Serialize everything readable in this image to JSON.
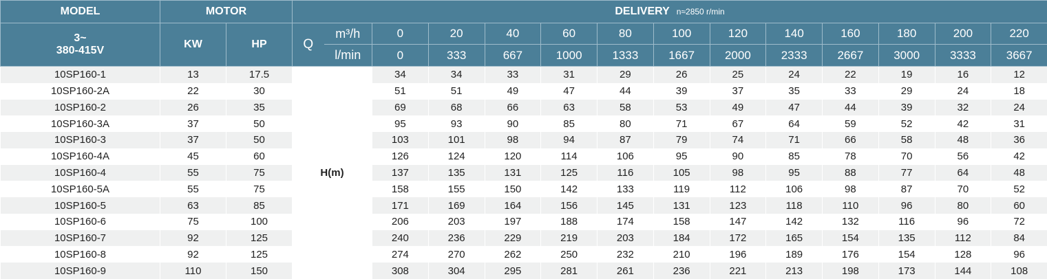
{
  "header": {
    "model": "MODEL",
    "motor": "MOTOR",
    "delivery": "DELIVERY",
    "speed": "n≈2850 r/min",
    "voltage_line1": "3~",
    "voltage_line2": "380-415V",
    "kw": "KW",
    "hp": "HP",
    "q": "Q",
    "unit_m3h": "m³/h",
    "unit_lmin": "l/min",
    "head_label": "H(m)",
    "flow_m3h": [
      "0",
      "20",
      "40",
      "60",
      "80",
      "100",
      "120",
      "140",
      "160",
      "180",
      "200",
      "220"
    ],
    "flow_lmin": [
      "0",
      "333",
      "667",
      "1000",
      "1333",
      "1667",
      "2000",
      "2333",
      "2667",
      "3000",
      "3333",
      "3667"
    ]
  },
  "colors": {
    "header_bg": "#4b7f98",
    "row_alt": "#eff0f0"
  },
  "rows": [
    {
      "model": "10SP160-1",
      "kw": "13",
      "hp": "17.5",
      "h": [
        "34",
        "34",
        "33",
        "31",
        "29",
        "26",
        "25",
        "24",
        "22",
        "19",
        "16",
        "12"
      ]
    },
    {
      "model": "10SP160-2A",
      "kw": "22",
      "hp": "30",
      "h": [
        "51",
        "51",
        "49",
        "47",
        "44",
        "39",
        "37",
        "35",
        "33",
        "29",
        "24",
        "18"
      ]
    },
    {
      "model": "10SP160-2",
      "kw": "26",
      "hp": "35",
      "h": [
        "69",
        "68",
        "66",
        "63",
        "58",
        "53",
        "49",
        "47",
        "44",
        "39",
        "32",
        "24"
      ]
    },
    {
      "model": "10SP160-3A",
      "kw": "37",
      "hp": "50",
      "h": [
        "95",
        "93",
        "90",
        "85",
        "80",
        "71",
        "67",
        "64",
        "59",
        "52",
        "42",
        "31"
      ]
    },
    {
      "model": "10SP160-3",
      "kw": "37",
      "hp": "50",
      "h": [
        "103",
        "101",
        "98",
        "94",
        "87",
        "79",
        "74",
        "71",
        "66",
        "58",
        "48",
        "36"
      ]
    },
    {
      "model": "10SP160-4A",
      "kw": "45",
      "hp": "60",
      "h": [
        "126",
        "124",
        "120",
        "114",
        "106",
        "95",
        "90",
        "85",
        "78",
        "70",
        "56",
        "42"
      ]
    },
    {
      "model": "10SP160-4",
      "kw": "55",
      "hp": "75",
      "h": [
        "137",
        "135",
        "131",
        "125",
        "116",
        "105",
        "98",
        "95",
        "88",
        "77",
        "64",
        "48"
      ]
    },
    {
      "model": "10SP160-5A",
      "kw": "55",
      "hp": "75",
      "h": [
        "158",
        "155",
        "150",
        "142",
        "133",
        "119",
        "112",
        "106",
        "98",
        "87",
        "70",
        "52"
      ]
    },
    {
      "model": "10SP160-5",
      "kw": "63",
      "hp": "85",
      "h": [
        "171",
        "169",
        "164",
        "156",
        "145",
        "131",
        "123",
        "118",
        "110",
        "96",
        "80",
        "60"
      ]
    },
    {
      "model": "10SP160-6",
      "kw": "75",
      "hp": "100",
      "h": [
        "206",
        "203",
        "197",
        "188",
        "174",
        "158",
        "147",
        "142",
        "132",
        "116",
        "96",
        "72"
      ]
    },
    {
      "model": "10SP160-7",
      "kw": "92",
      "hp": "125",
      "h": [
        "240",
        "236",
        "229",
        "219",
        "203",
        "184",
        "172",
        "165",
        "154",
        "135",
        "112",
        "84"
      ]
    },
    {
      "model": "10SP160-8",
      "kw": "92",
      "hp": "125",
      "h": [
        "274",
        "270",
        "262",
        "250",
        "232",
        "210",
        "196",
        "189",
        "176",
        "154",
        "128",
        "96"
      ]
    },
    {
      "model": "10SP160-9",
      "kw": "110",
      "hp": "150",
      "h": [
        "308",
        "304",
        "295",
        "281",
        "261",
        "236",
        "221",
        "213",
        "198",
        "173",
        "144",
        "108"
      ]
    }
  ]
}
